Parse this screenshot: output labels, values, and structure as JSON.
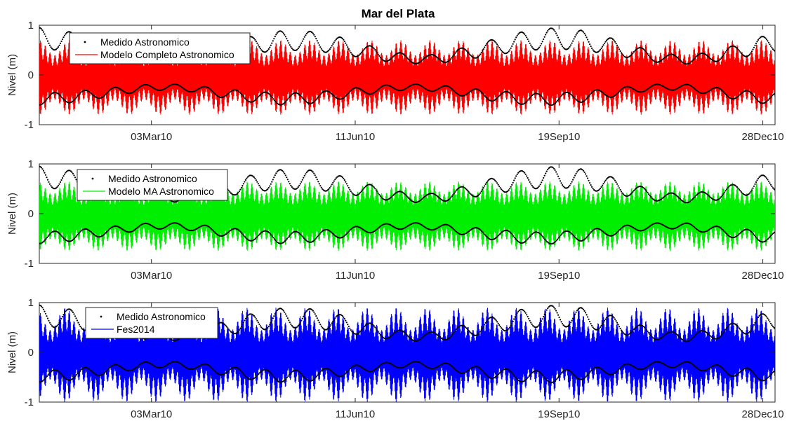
{
  "chart_data": [
    {
      "type": "line",
      "title": "Mar del Plata",
      "xlabel": "",
      "ylabel": "Nivel (m)",
      "ylim": [
        -1,
        1
      ],
      "yticks": [
        -1,
        0,
        1
      ],
      "xlim": [
        "2010-01-07",
        "2011-01-03"
      ],
      "xticks": [
        "2010-03-03",
        "2010-06-11",
        "2010-09-19",
        "2010-12-28"
      ],
      "xtick_labels": [
        "03Mar10",
        "11Jun10",
        "19Sep10",
        "28Dec10"
      ],
      "legend_position": "top-left",
      "series": [
        {
          "name": "Medido Astronomico",
          "style": "dots",
          "color": "#000000",
          "daily_range_max": [
            0.95,
            0.9,
            0.82,
            0.7,
            0.58,
            0.48,
            0.42,
            0.45,
            0.55,
            0.68,
            0.8,
            0.88,
            0.9,
            0.85,
            0.75,
            0.62,
            0.5,
            0.42,
            0.4,
            0.48,
            0.6,
            0.72,
            0.84,
            0.92,
            0.95,
            0.9,
            0.8,
            0.66,
            0.52,
            0.42,
            0.4,
            0.46,
            0.58,
            0.72,
            0.85
          ],
          "daily_range_min": [
            -0.6,
            -0.58,
            -0.52,
            -0.45,
            -0.38,
            -0.32,
            -0.3,
            -0.34,
            -0.42,
            -0.5,
            -0.56,
            -0.6,
            -0.6,
            -0.55,
            -0.48,
            -0.4,
            -0.34,
            -0.3,
            -0.32,
            -0.38,
            -0.46,
            -0.53,
            -0.58,
            -0.62,
            -0.6,
            -0.55,
            -0.48,
            -0.4,
            -0.33,
            -0.3,
            -0.32,
            -0.4,
            -0.48,
            -0.55,
            -0.6
          ]
        },
        {
          "name": "Modelo Completo Astronomico",
          "style": "line",
          "color": "#ff0000",
          "amplitude_max": 0.75,
          "amplitude_min": 0.45
        }
      ]
    },
    {
      "type": "line",
      "title": "",
      "xlabel": "",
      "ylabel": "Nivel (m)",
      "ylim": [
        -1,
        1
      ],
      "yticks": [
        -1,
        0,
        1
      ],
      "xlim": [
        "2010-01-07",
        "2011-01-03"
      ],
      "xticks": [
        "2010-03-03",
        "2010-06-11",
        "2010-09-19",
        "2010-12-28"
      ],
      "xtick_labels": [
        "03Mar10",
        "11Jun10",
        "19Sep10",
        "28Dec10"
      ],
      "legend_position": "top-left",
      "series": [
        {
          "name": "Medido Astronomico",
          "style": "dots",
          "color": "#000000",
          "daily_range_max": [
            0.95,
            0.9,
            0.82,
            0.7,
            0.58,
            0.48,
            0.42,
            0.45,
            0.55,
            0.68,
            0.8,
            0.88,
            0.9,
            0.85,
            0.75,
            0.62,
            0.5,
            0.42,
            0.4,
            0.48,
            0.6,
            0.72,
            0.84,
            0.92,
            0.95,
            0.9,
            0.8,
            0.66,
            0.52,
            0.42,
            0.4,
            0.46,
            0.58,
            0.72,
            0.85
          ],
          "daily_range_min": [
            -0.6,
            -0.58,
            -0.52,
            -0.45,
            -0.38,
            -0.32,
            -0.3,
            -0.34,
            -0.42,
            -0.5,
            -0.56,
            -0.6,
            -0.6,
            -0.55,
            -0.48,
            -0.4,
            -0.34,
            -0.3,
            -0.32,
            -0.38,
            -0.46,
            -0.53,
            -0.58,
            -0.62,
            -0.6,
            -0.55,
            -0.48,
            -0.4,
            -0.33,
            -0.3,
            -0.32,
            -0.4,
            -0.48,
            -0.55,
            -0.6
          ]
        },
        {
          "name": "Modelo MA Astronomico",
          "style": "line",
          "color": "#00ee00",
          "amplitude_max": 0.7,
          "amplitude_min": 0.45
        }
      ]
    },
    {
      "type": "line",
      "title": "",
      "xlabel": "",
      "ylabel": "Nivel (m)",
      "ylim": [
        -1,
        1
      ],
      "yticks": [
        -1,
        0,
        1
      ],
      "xlim": [
        "2010-01-07",
        "2011-01-03"
      ],
      "xticks": [
        "2010-03-03",
        "2010-06-11",
        "2010-09-19",
        "2010-12-28"
      ],
      "xtick_labels": [
        "03Mar10",
        "11Jun10",
        "19Sep10",
        "28Dec10"
      ],
      "legend_position": "top-left",
      "series": [
        {
          "name": "Medido Astronomico",
          "style": "dots",
          "color": "#000000",
          "daily_range_max": [
            0.95,
            0.9,
            0.82,
            0.7,
            0.58,
            0.48,
            0.42,
            0.45,
            0.55,
            0.68,
            0.8,
            0.88,
            0.9,
            0.85,
            0.75,
            0.62,
            0.5,
            0.42,
            0.4,
            0.48,
            0.6,
            0.72,
            0.84,
            0.92,
            0.95,
            0.9,
            0.8,
            0.66,
            0.52,
            0.42,
            0.4,
            0.46,
            0.58,
            0.72,
            0.85
          ],
          "daily_range_min": [
            -0.6,
            -0.58,
            -0.52,
            -0.45,
            -0.38,
            -0.32,
            -0.3,
            -0.34,
            -0.42,
            -0.5,
            -0.56,
            -0.6,
            -0.6,
            -0.55,
            -0.48,
            -0.4,
            -0.34,
            -0.3,
            -0.32,
            -0.38,
            -0.46,
            -0.53,
            -0.58,
            -0.62,
            -0.6,
            -0.55,
            -0.48,
            -0.4,
            -0.33,
            -0.3,
            -0.32,
            -0.4,
            -0.48,
            -0.55,
            -0.6
          ]
        },
        {
          "name": "Fes2014",
          "style": "line",
          "color": "#0000ff",
          "amplitude_max": 0.95,
          "amplitude_min": 0.5
        }
      ]
    }
  ]
}
